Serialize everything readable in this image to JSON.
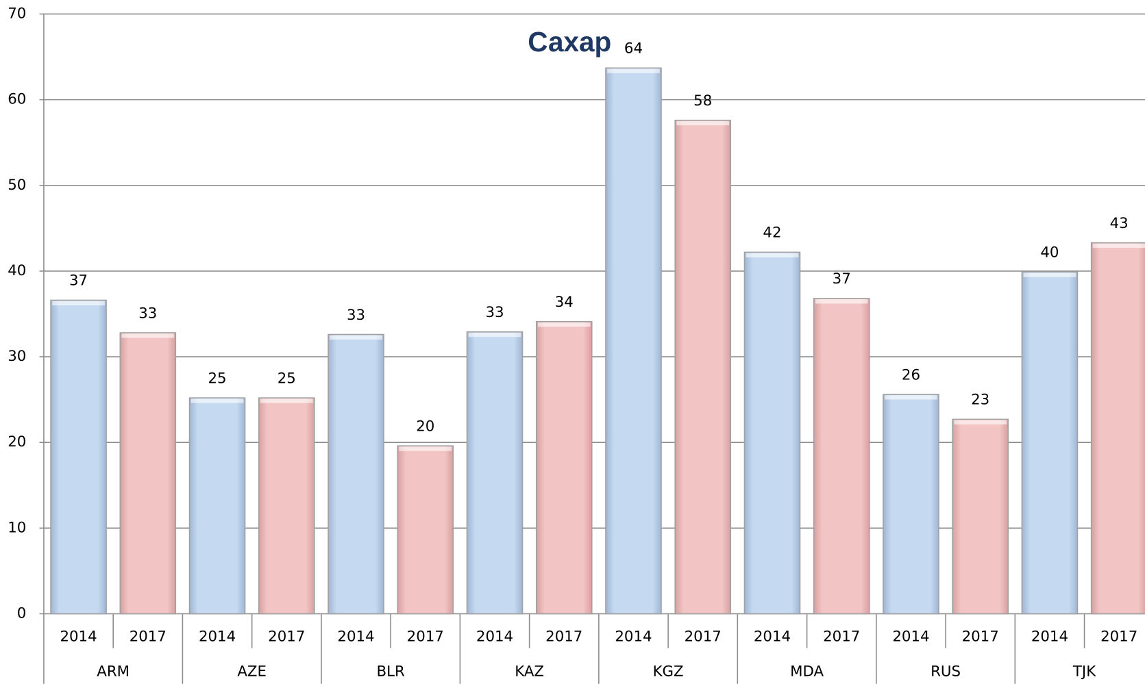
{
  "chart_data": {
    "type": "bar",
    "title": "Сахар",
    "categories": [
      "2014",
      "2017",
      "2014",
      "2017",
      "2014",
      "2017",
      "2014",
      "2017",
      "2014",
      "2017",
      "2014",
      "2017",
      "2014",
      "2017",
      "2014",
      "2017"
    ],
    "groups": [
      "ARM",
      "AZE",
      "BLR",
      "KAZ",
      "KGZ",
      "MDA",
      "RUS",
      "TJK"
    ],
    "values": [
      36.6,
      32.8,
      25.2,
      25.2,
      32.6,
      19.6,
      32.9,
      34.1,
      63.7,
      57.6,
      42.2,
      36.8,
      25.6,
      22.7,
      39.9,
      43.3
    ],
    "value_labels": [
      "37",
      "33",
      "25",
      "25",
      "33",
      "20",
      "33",
      "34",
      "64",
      "58",
      "42",
      "37",
      "26",
      "23",
      "40",
      "43"
    ],
    "colors": [
      "#c5d9f1",
      "#f2c4c4"
    ],
    "ylim": [
      0,
      70
    ],
    "yticks": [
      0,
      10,
      20,
      30,
      40,
      50,
      60,
      70
    ],
    "grid": true
  }
}
